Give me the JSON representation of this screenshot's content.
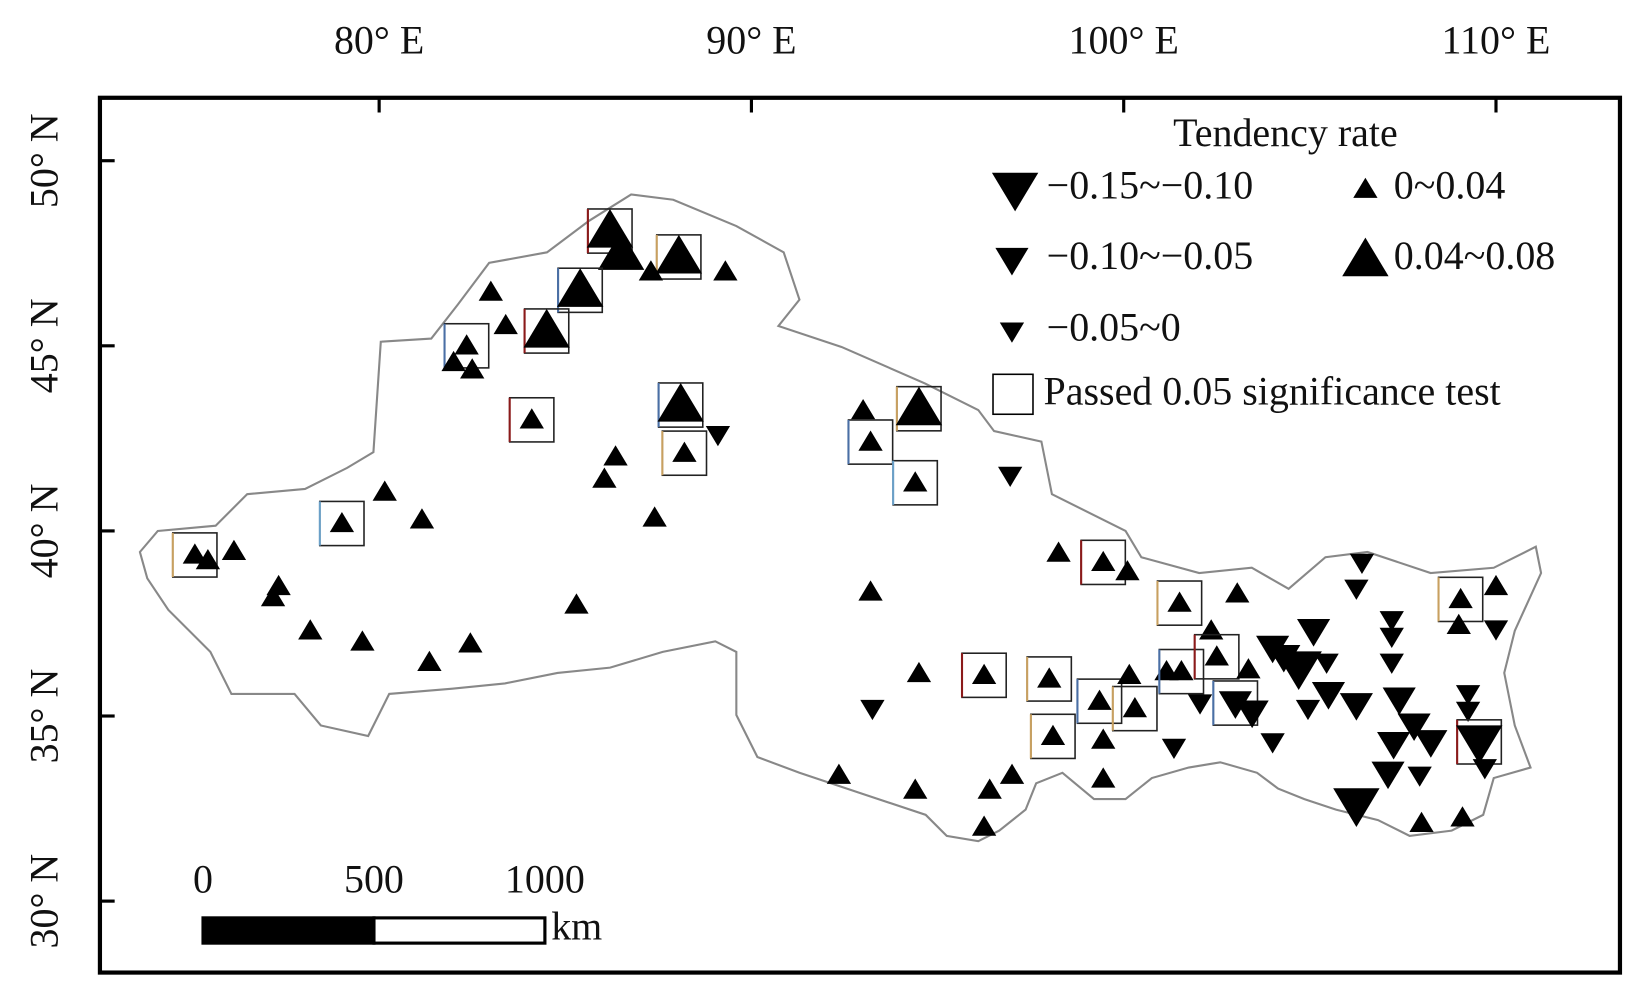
{
  "map": {
    "lon_range": [
      72.5,
      113.33
    ],
    "lat_range": [
      28.07,
      51.7
    ],
    "lon_ticks": [
      {
        "value": 80,
        "label": "80° E"
      },
      {
        "value": 90,
        "label": "90° E"
      },
      {
        "value": 100,
        "label": "100° E"
      },
      {
        "value": 110,
        "label": "110° E"
      }
    ],
    "lat_ticks": [
      {
        "value": 50,
        "label": "50° N"
      },
      {
        "value": 45,
        "label": "45° N"
      },
      {
        "value": 40,
        "label": "40° N"
      },
      {
        "value": 35,
        "label": "35° N"
      },
      {
        "value": 30,
        "label": "30° N"
      }
    ],
    "legend": {
      "title": "Tendency rate",
      "items": [
        {
          "label": "−0.15~−0.10",
          "shape": "down",
          "size": "large"
        },
        {
          "label": "0~0.04",
          "shape": "up",
          "size": "small"
        },
        {
          "label": "−0.10~−0.05",
          "shape": "down",
          "size": "medium"
        },
        {
          "label": "0.04~0.08",
          "shape": "up",
          "size": "large"
        },
        {
          "label": "−0.05~0",
          "shape": "down",
          "size": "small"
        }
      ],
      "significance_label": "Passed 0.05 significance test"
    },
    "scale_bar": {
      "ticks": [
        0,
        500,
        1000
      ],
      "unit": "km"
    },
    "stations": [
      {
        "lon": 86.2,
        "lat": 48.1,
        "cls": 3,
        "sig": true
      },
      {
        "lon": 86.5,
        "lat": 47.5,
        "cls": 3,
        "sig": false
      },
      {
        "lon": 88.05,
        "lat": 47.4,
        "cls": 3,
        "sig": true
      },
      {
        "lon": 87.3,
        "lat": 47.0,
        "cls": 1,
        "sig": false
      },
      {
        "lon": 89.3,
        "lat": 47.0,
        "cls": 1,
        "sig": false
      },
      {
        "lon": 85.4,
        "lat": 46.5,
        "cls": 3,
        "sig": true
      },
      {
        "lon": 83.0,
        "lat": 46.45,
        "cls": 1,
        "sig": false
      },
      {
        "lon": 83.4,
        "lat": 45.55,
        "cls": 1,
        "sig": false
      },
      {
        "lon": 84.5,
        "lat": 45.4,
        "cls": 3,
        "sig": true
      },
      {
        "lon": 82.35,
        "lat": 45.0,
        "cls": 1,
        "sig": true
      },
      {
        "lon": 82.0,
        "lat": 44.55,
        "cls": 1,
        "sig": false
      },
      {
        "lon": 82.5,
        "lat": 44.35,
        "cls": 1,
        "sig": false
      },
      {
        "lon": 84.1,
        "lat": 43.0,
        "cls": 1,
        "sig": true
      },
      {
        "lon": 88.1,
        "lat": 43.4,
        "cls": 3,
        "sig": true
      },
      {
        "lon": 88.2,
        "lat": 42.1,
        "cls": 1,
        "sig": true
      },
      {
        "lon": 89.1,
        "lat": 42.6,
        "cls": 4,
        "sig": false
      },
      {
        "lon": 86.35,
        "lat": 42.0,
        "cls": 1,
        "sig": false
      },
      {
        "lon": 86.05,
        "lat": 41.4,
        "cls": 1,
        "sig": false
      },
      {
        "lon": 87.4,
        "lat": 40.35,
        "cls": 1,
        "sig": false
      },
      {
        "lon": 79.0,
        "lat": 40.2,
        "cls": 1,
        "sig": true
      },
      {
        "lon": 80.15,
        "lat": 41.05,
        "cls": 1,
        "sig": false
      },
      {
        "lon": 81.15,
        "lat": 40.3,
        "cls": 1,
        "sig": false
      },
      {
        "lon": 75.05,
        "lat": 39.35,
        "cls": 1,
        "sig": true
      },
      {
        "lon": 75.4,
        "lat": 39.2,
        "cls": 1,
        "sig": false
      },
      {
        "lon": 76.1,
        "lat": 39.45,
        "cls": 1,
        "sig": false
      },
      {
        "lon": 77.3,
        "lat": 38.5,
        "cls": 1,
        "sig": false
      },
      {
        "lon": 77.15,
        "lat": 38.2,
        "cls": 1,
        "sig": false
      },
      {
        "lon": 78.15,
        "lat": 37.3,
        "cls": 1,
        "sig": false
      },
      {
        "lon": 79.55,
        "lat": 37.0,
        "cls": 1,
        "sig": false
      },
      {
        "lon": 81.35,
        "lat": 36.45,
        "cls": 1,
        "sig": false
      },
      {
        "lon": 82.45,
        "lat": 36.95,
        "cls": 1,
        "sig": false
      },
      {
        "lon": 85.3,
        "lat": 38.0,
        "cls": 1,
        "sig": false
      },
      {
        "lon": 93.0,
        "lat": 43.25,
        "cls": 1,
        "sig": false
      },
      {
        "lon": 93.2,
        "lat": 42.4,
        "cls": 1,
        "sig": true
      },
      {
        "lon": 94.5,
        "lat": 43.3,
        "cls": 3,
        "sig": true
      },
      {
        "lon": 94.4,
        "lat": 41.3,
        "cls": 1,
        "sig": true
      },
      {
        "lon": 96.95,
        "lat": 41.5,
        "cls": 4,
        "sig": false
      },
      {
        "lon": 93.2,
        "lat": 38.35,
        "cls": 1,
        "sig": false
      },
      {
        "lon": 94.5,
        "lat": 36.15,
        "cls": 1,
        "sig": false
      },
      {
        "lon": 93.25,
        "lat": 35.2,
        "cls": 4,
        "sig": false
      },
      {
        "lon": 96.25,
        "lat": 36.1,
        "cls": 1,
        "sig": true
      },
      {
        "lon": 92.35,
        "lat": 33.4,
        "cls": 1,
        "sig": false
      },
      {
        "lon": 94.4,
        "lat": 33.0,
        "cls": 1,
        "sig": false
      },
      {
        "lon": 96.4,
        "lat": 33.0,
        "cls": 1,
        "sig": false
      },
      {
        "lon": 97.0,
        "lat": 33.4,
        "cls": 1,
        "sig": false
      },
      {
        "lon": 96.25,
        "lat": 32.0,
        "cls": 1,
        "sig": false
      },
      {
        "lon": 98.0,
        "lat": 36.0,
        "cls": 1,
        "sig": true
      },
      {
        "lon": 98.25,
        "lat": 39.4,
        "cls": 1,
        "sig": false
      },
      {
        "lon": 99.45,
        "lat": 39.15,
        "cls": 1,
        "sig": true
      },
      {
        "lon": 100.1,
        "lat": 38.9,
        "cls": 1,
        "sig": false
      },
      {
        "lon": 98.1,
        "lat": 34.45,
        "cls": 1,
        "sig": true
      },
      {
        "lon": 99.45,
        "lat": 34.35,
        "cls": 1,
        "sig": false
      },
      {
        "lon": 99.45,
        "lat": 33.3,
        "cls": 1,
        "sig": false
      },
      {
        "lon": 99.35,
        "lat": 35.4,
        "cls": 1,
        "sig": true
      },
      {
        "lon": 100.3,
        "lat": 35.2,
        "cls": 1,
        "sig": true
      },
      {
        "lon": 100.15,
        "lat": 36.1,
        "cls": 1,
        "sig": false
      },
      {
        "lon": 101.15,
        "lat": 36.2,
        "cls": 1,
        "sig": false
      },
      {
        "lon": 101.55,
        "lat": 36.2,
        "cls": 1,
        "sig": true
      },
      {
        "lon": 101.5,
        "lat": 38.05,
        "cls": 1,
        "sig": true
      },
      {
        "lon": 102.35,
        "lat": 37.3,
        "cls": 1,
        "sig": false
      },
      {
        "lon": 102.5,
        "lat": 36.6,
        "cls": 1,
        "sig": true
      },
      {
        "lon": 103.05,
        "lat": 38.3,
        "cls": 1,
        "sig": false
      },
      {
        "lon": 103.35,
        "lat": 36.25,
        "cls": 1,
        "sig": false
      },
      {
        "lon": 102.05,
        "lat": 35.35,
        "cls": 4,
        "sig": false
      },
      {
        "lon": 101.35,
        "lat": 34.15,
        "cls": 4,
        "sig": false
      },
      {
        "lon": 103.0,
        "lat": 35.35,
        "cls": 2,
        "sig": true
      },
      {
        "lon": 103.45,
        "lat": 35.1,
        "cls": 2,
        "sig": false
      },
      {
        "lon": 104.0,
        "lat": 34.3,
        "cls": 4,
        "sig": false
      },
      {
        "lon": 104.3,
        "lat": 36.6,
        "cls": 2,
        "sig": false
      },
      {
        "lon": 104.7,
        "lat": 36.3,
        "cls": 0,
        "sig": false
      },
      {
        "lon": 104.0,
        "lat": 36.85,
        "cls": 2,
        "sig": false
      },
      {
        "lon": 105.1,
        "lat": 37.3,
        "cls": 2,
        "sig": false
      },
      {
        "lon": 105.45,
        "lat": 36.45,
        "cls": 4,
        "sig": false
      },
      {
        "lon": 104.95,
        "lat": 35.2,
        "cls": 4,
        "sig": false
      },
      {
        "lon": 105.5,
        "lat": 35.6,
        "cls": 2,
        "sig": false
      },
      {
        "lon": 106.25,
        "lat": 35.3,
        "cls": 2,
        "sig": false
      },
      {
        "lon": 106.4,
        "lat": 39.15,
        "cls": 4,
        "sig": false
      },
      {
        "lon": 106.25,
        "lat": 38.45,
        "cls": 4,
        "sig": false
      },
      {
        "lon": 107.2,
        "lat": 37.6,
        "cls": 4,
        "sig": false
      },
      {
        "lon": 107.2,
        "lat": 37.15,
        "cls": 4,
        "sig": false
      },
      {
        "lon": 107.2,
        "lat": 36.45,
        "cls": 4,
        "sig": false
      },
      {
        "lon": 107.4,
        "lat": 35.45,
        "cls": 2,
        "sig": false
      },
      {
        "lon": 107.8,
        "lat": 34.75,
        "cls": 2,
        "sig": false
      },
      {
        "lon": 107.25,
        "lat": 34.25,
        "cls": 2,
        "sig": false
      },
      {
        "lon": 107.1,
        "lat": 33.45,
        "cls": 2,
        "sig": false
      },
      {
        "lon": 107.95,
        "lat": 33.4,
        "cls": 4,
        "sig": false
      },
      {
        "lon": 108.25,
        "lat": 34.3,
        "cls": 2,
        "sig": false
      },
      {
        "lon": 106.25,
        "lat": 32.6,
        "cls": 0,
        "sig": false
      },
      {
        "lon": 108.0,
        "lat": 32.1,
        "cls": 1,
        "sig": false
      },
      {
        "lon": 109.1,
        "lat": 32.25,
        "cls": 1,
        "sig": false
      },
      {
        "lon": 109.25,
        "lat": 35.6,
        "cls": 4,
        "sig": false
      },
      {
        "lon": 109.25,
        "lat": 35.15,
        "cls": 4,
        "sig": false
      },
      {
        "lon": 109.55,
        "lat": 34.3,
        "cls": 0,
        "sig": true
      },
      {
        "lon": 109.7,
        "lat": 33.6,
        "cls": 4,
        "sig": false
      },
      {
        "lon": 109.05,
        "lat": 38.15,
        "cls": 1,
        "sig": true
      },
      {
        "lon": 110.0,
        "lat": 38.5,
        "cls": 1,
        "sig": false
      },
      {
        "lon": 110.0,
        "lat": 37.35,
        "cls": 4,
        "sig": false
      },
      {
        "lon": 109.0,
        "lat": 37.45,
        "cls": 1,
        "sig": false
      }
    ]
  }
}
